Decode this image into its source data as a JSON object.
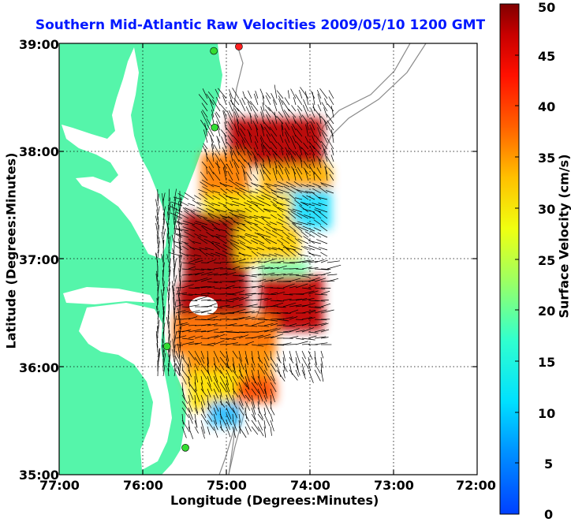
{
  "title": "Southern Mid-Atlantic Raw Velocities 2009/05/10 1200 GMT",
  "map": {
    "xlabel": "Longitude (Degrees:Minutes)",
    "ylabel": "Latitude (Degrees:Minutes)",
    "x_ticks": [
      "77:00",
      "76:00",
      "75:00",
      "74:00",
      "73:00",
      "72:00"
    ],
    "y_ticks": [
      "39:00",
      "38:00",
      "37:00",
      "36:00",
      "35:00"
    ],
    "lon_range": [
      -77,
      -72
    ],
    "lat_range": [
      35,
      39
    ],
    "grid": "dotted",
    "land_color": "#55f5aa",
    "bathymetry_color": "#8a8a8a",
    "vector_color": "#000000",
    "station_markers": [
      {
        "color": "#ff2020",
        "lon": -74.85,
        "lat": 38.97
      },
      {
        "color": "#33dd33",
        "lon": -75.15,
        "lat": 38.93
      },
      {
        "color": "#33dd33",
        "lon": -75.14,
        "lat": 38.22
      },
      {
        "color": "#33dd33",
        "lon": -75.71,
        "lat": 36.19
      },
      {
        "color": "#33dd33",
        "lon": -75.49,
        "lat": 35.25
      }
    ]
  },
  "colorbar": {
    "label": "Surface Velocity (cm/s)",
    "min": 0,
    "max": 50,
    "ticks": [
      "0",
      "5",
      "10",
      "15",
      "20",
      "25",
      "30",
      "35",
      "40",
      "45",
      "50"
    ],
    "colormap": "jet"
  }
}
